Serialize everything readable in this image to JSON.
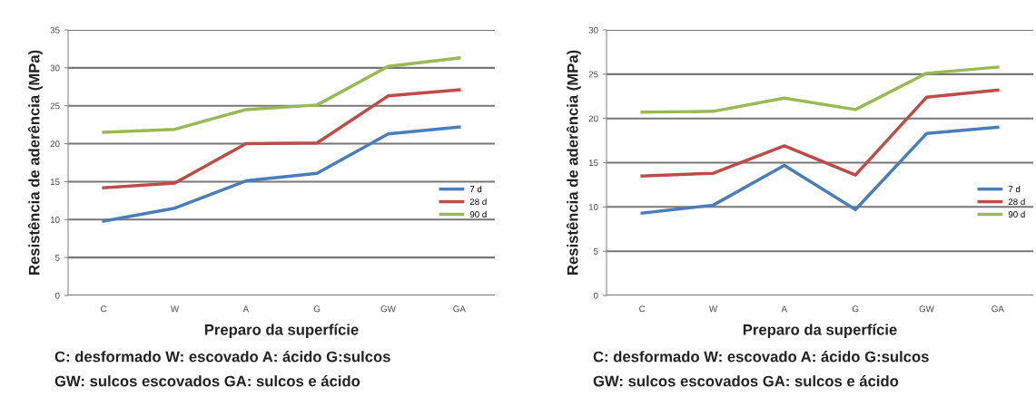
{
  "chart_data": [
    {
      "type": "line",
      "xlabel": "Preparo da superfície",
      "ylabel": "Resistência de aderência (MPa)",
      "categories": [
        "C",
        "W",
        "A",
        "G",
        "GW",
        "GA"
      ],
      "series": [
        {
          "name": "7 d",
          "color": "#4a7ebb",
          "values": [
            9.8,
            11.5,
            15.1,
            16.1,
            21.3,
            22.2
          ]
        },
        {
          "name": "28 d",
          "color": "#be4b48",
          "values": [
            14.2,
            14.8,
            20.0,
            20.1,
            26.3,
            27.1
          ]
        },
        {
          "name": "90 d",
          "color": "#98b954",
          "values": [
            21.5,
            21.9,
            24.5,
            25.1,
            30.2,
            31.3
          ]
        }
      ],
      "ylim": [
        0,
        35
      ],
      "yticks": [
        0,
        5,
        10,
        15,
        20,
        25,
        30,
        35
      ],
      "grid": "y",
      "legend": "right",
      "marker": "none",
      "annotations": [
        "C: desformado W: escovado A: ácido G:sulcos",
        "GW: sulcos escovados GA: sulcos e ácido"
      ]
    },
    {
      "type": "line",
      "xlabel": "Preparo da superfície",
      "ylabel": "Resistência de aderência (MPa)",
      "categories": [
        "C",
        "W",
        "A",
        "G",
        "GW",
        "GA"
      ],
      "series": [
        {
          "name": "7 d",
          "color": "#4a7ebb",
          "values": [
            9.3,
            10.2,
            14.7,
            9.7,
            18.3,
            19.0
          ]
        },
        {
          "name": "28 d",
          "color": "#be4b48",
          "values": [
            13.5,
            13.8,
            16.9,
            13.6,
            22.4,
            23.2
          ]
        },
        {
          "name": "90 d",
          "color": "#98b954",
          "values": [
            20.7,
            20.8,
            22.3,
            21.0,
            25.1,
            25.8
          ]
        }
      ],
      "ylim": [
        0,
        30
      ],
      "yticks": [
        0,
        5,
        10,
        15,
        20,
        25,
        30
      ],
      "grid": "y",
      "legend": "right",
      "marker": "none",
      "annotations": [
        "C: desformado W: escovado A: ácido G:sulcos",
        "GW: sulcos escovados GA: sulcos e ácido"
      ]
    }
  ]
}
